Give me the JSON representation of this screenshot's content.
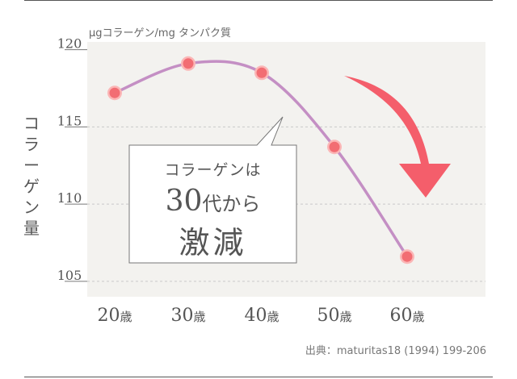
{
  "chart_data": {
    "type": "line",
    "unit_label": "μgコラーゲン/mg タンパク質",
    "ylabel": "コラーゲン量",
    "categories": [
      "20歳",
      "30歳",
      "40歳",
      "50歳",
      "60歳"
    ],
    "category_numbers": [
      "20",
      "30",
      "40",
      "50",
      "60"
    ],
    "category_suffix": "歳",
    "series": [
      {
        "values": [
          117.2,
          119.1,
          118.5,
          113.7,
          106.6
        ]
      }
    ],
    "ylim": [
      104,
      120.5
    ],
    "yticks": [
      105,
      110,
      115,
      120
    ],
    "grid": true,
    "colors": {
      "line": "#c48fc4",
      "marker": "#f26d73",
      "marker_edge": "#fbb6b6",
      "plot_bg": "#f3f2ef",
      "arrow": "#f45e6b"
    }
  },
  "callout": {
    "line1": "コラーゲンは",
    "line2_big": "30",
    "line2_rest": "代から",
    "line3": "激減"
  },
  "source": "出典：maturitas18 (1994) 199-206"
}
